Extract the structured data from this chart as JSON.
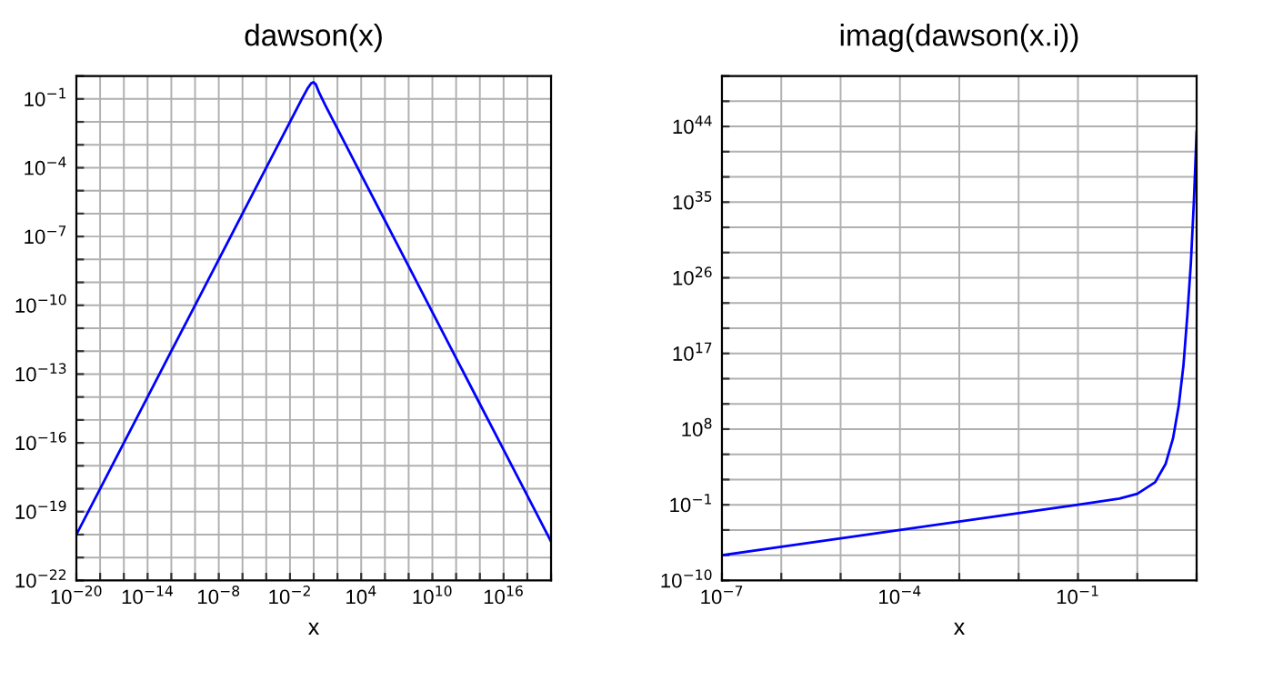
{
  "chart_data": [
    {
      "type": "line",
      "title": "dawson(x)",
      "xlabel": "x",
      "log": "xy",
      "grid": true,
      "x": [
        1e-20,
        1e-18,
        1e-16,
        1e-14,
        1e-12,
        1e-10,
        1e-08,
        1e-06,
        0.0001,
        0.01,
        0.1,
        0.3,
        0.6,
        0.92,
        1.5,
        3,
        10,
        100,
        10000.0,
        1000000.0,
        100000000.0,
        10000000000.0,
        1000000000000.0,
        100000000000000.0,
        1e+16,
        1e+18,
        1e+20
      ],
      "series": [
        {
          "color": "#0000ff",
          "values": [
            1e-20,
            1e-18,
            1e-16,
            1e-14,
            1e-12,
            1e-10,
            1e-08,
            1e-06,
            0.0001,
            0.01,
            0.0993,
            0.2841,
            0.4748,
            0.541,
            0.4282,
            0.1783,
            0.0503,
            0.005,
            5e-05,
            5e-07,
            5e-09,
            5e-11,
            5e-13,
            5e-15,
            5e-17,
            5e-19,
            5e-21
          ]
        }
      ],
      "xlim": [
        1e-20,
        1e+20
      ],
      "ylim": [
        1e-22,
        1
      ],
      "xticks": [
        {
          "value": 1e-20,
          "label": "10$^{−20}$"
        },
        {
          "value": 1e-18,
          "label": null
        },
        {
          "value": 1e-16,
          "label": null
        },
        {
          "value": 1e-14,
          "label": "10$^{−14}$"
        },
        {
          "value": 1e-12,
          "label": null
        },
        {
          "value": 1e-10,
          "label": null
        },
        {
          "value": 1e-08,
          "label": "10$^{−8}$"
        },
        {
          "value": 1e-06,
          "label": null
        },
        {
          "value": 0.0001,
          "label": null
        },
        {
          "value": 0.01,
          "label": "10$^{−2}$"
        },
        {
          "value": 1,
          "label": null
        },
        {
          "value": 100.0,
          "label": null
        },
        {
          "value": 10000.0,
          "label": "10$^{4}$"
        },
        {
          "value": 1000000.0,
          "label": null
        },
        {
          "value": 100000000.0,
          "label": null
        },
        {
          "value": 10000000000.0,
          "label": "10$^{10}$"
        },
        {
          "value": 1000000000000.0,
          "label": null
        },
        {
          "value": 100000000000000.0,
          "label": null
        },
        {
          "value": 1e+16,
          "label": "10$^{16}$"
        },
        {
          "value": 1e+18,
          "label": null
        },
        {
          "value": 1e+20,
          "label": null
        }
      ],
      "yticks": [
        {
          "value": 1e-22,
          "label": "10$^{−22}$"
        },
        {
          "value": 1e-21,
          "label": null
        },
        {
          "value": 1e-20,
          "label": null
        },
        {
          "value": 1e-19,
          "label": "10$^{−19}$"
        },
        {
          "value": 1e-18,
          "label": null
        },
        {
          "value": 1e-17,
          "label": null
        },
        {
          "value": 1e-16,
          "label": "10$^{−16}$"
        },
        {
          "value": 1e-15,
          "label": null
        },
        {
          "value": 1e-14,
          "label": null
        },
        {
          "value": 1e-13,
          "label": "10$^{−13}$"
        },
        {
          "value": 1e-12,
          "label": null
        },
        {
          "value": 1e-11,
          "label": null
        },
        {
          "value": 1e-10,
          "label": "10$^{−10}$"
        },
        {
          "value": 1e-09,
          "label": null
        },
        {
          "value": 1e-08,
          "label": null
        },
        {
          "value": 1e-07,
          "label": "10$^{−7}$"
        },
        {
          "value": 1e-06,
          "label": null
        },
        {
          "value": 1e-05,
          "label": null
        },
        {
          "value": 0.0001,
          "label": "10$^{−4}$"
        },
        {
          "value": 0.001,
          "label": null
        },
        {
          "value": 0.01,
          "label": null
        },
        {
          "value": 0.1,
          "label": "10$^{−1}$"
        },
        {
          "value": 1,
          "label": null
        }
      ]
    },
    {
      "type": "line",
      "title": "imag(dawson(x.i))",
      "xlabel": "x",
      "log": "xy",
      "grid": true,
      "x": [
        1e-07,
        1e-06,
        1e-05,
        0.0001,
        0.001,
        0.01,
        0.1,
        0.5,
        1,
        2,
        3,
        4,
        5,
        6,
        7,
        8,
        9,
        10
      ],
      "series": [
        {
          "color": "#0000ff",
          "values": [
            1e-07,
            1e-06,
            1e-05,
            0.0001,
            0.001,
            0.01,
            0.1,
            0.545,
            2.03,
            48.2,
            7179,
            7870000.0,
            63800000000.0,
            3820000000000000.0,
            4.64e+21,
            5.52e+27,
            1.33e+35,
            2.38e+43
          ]
        }
      ],
      "xlim": [
        1e-07,
        10
      ],
      "ylim": [
        1e-10,
        1e+50
      ],
      "xticks": [
        {
          "value": 1e-07,
          "label": "10$^{−7}$"
        },
        {
          "value": 1e-06,
          "label": null
        },
        {
          "value": 1e-05,
          "label": null
        },
        {
          "value": 0.0001,
          "label": "10$^{−4}$"
        },
        {
          "value": 0.001,
          "label": null
        },
        {
          "value": 0.01,
          "label": null
        },
        {
          "value": 0.1,
          "label": "10$^{−1}$"
        },
        {
          "value": 1,
          "label": null
        },
        {
          "value": 10,
          "label": null
        }
      ],
      "yticks": [
        {
          "value": 1e-10,
          "label": "10$^{−10}$"
        },
        {
          "value": 1e-07,
          "label": null
        },
        {
          "value": 0.0001,
          "label": null
        },
        {
          "value": 0.1,
          "label": "10$^{−1}$"
        },
        {
          "value": 100.0,
          "label": null
        },
        {
          "value": 100000.0,
          "label": null
        },
        {
          "value": 100000000.0,
          "label": "10$^{8}$"
        },
        {
          "value": 100000000000.0,
          "label": null
        },
        {
          "value": 100000000000000.0,
          "label": null
        },
        {
          "value": 1e+17,
          "label": "10$^{17}$"
        },
        {
          "value": 1e+20,
          "label": null
        },
        {
          "value": 1e+23,
          "label": null
        },
        {
          "value": 1e+26,
          "label": "10$^{26}$"
        },
        {
          "value": 1e+29,
          "label": null
        },
        {
          "value": 1e+32,
          "label": null
        },
        {
          "value": 1e+35,
          "label": "10$^{35}$"
        },
        {
          "value": 1e+38,
          "label": null
        },
        {
          "value": 1e+41,
          "label": null
        },
        {
          "value": 1e+44,
          "label": "10$^{44}$"
        },
        {
          "value": 1e+47,
          "label": null
        },
        {
          "value": 1e+50,
          "label": null
        }
      ]
    }
  ]
}
